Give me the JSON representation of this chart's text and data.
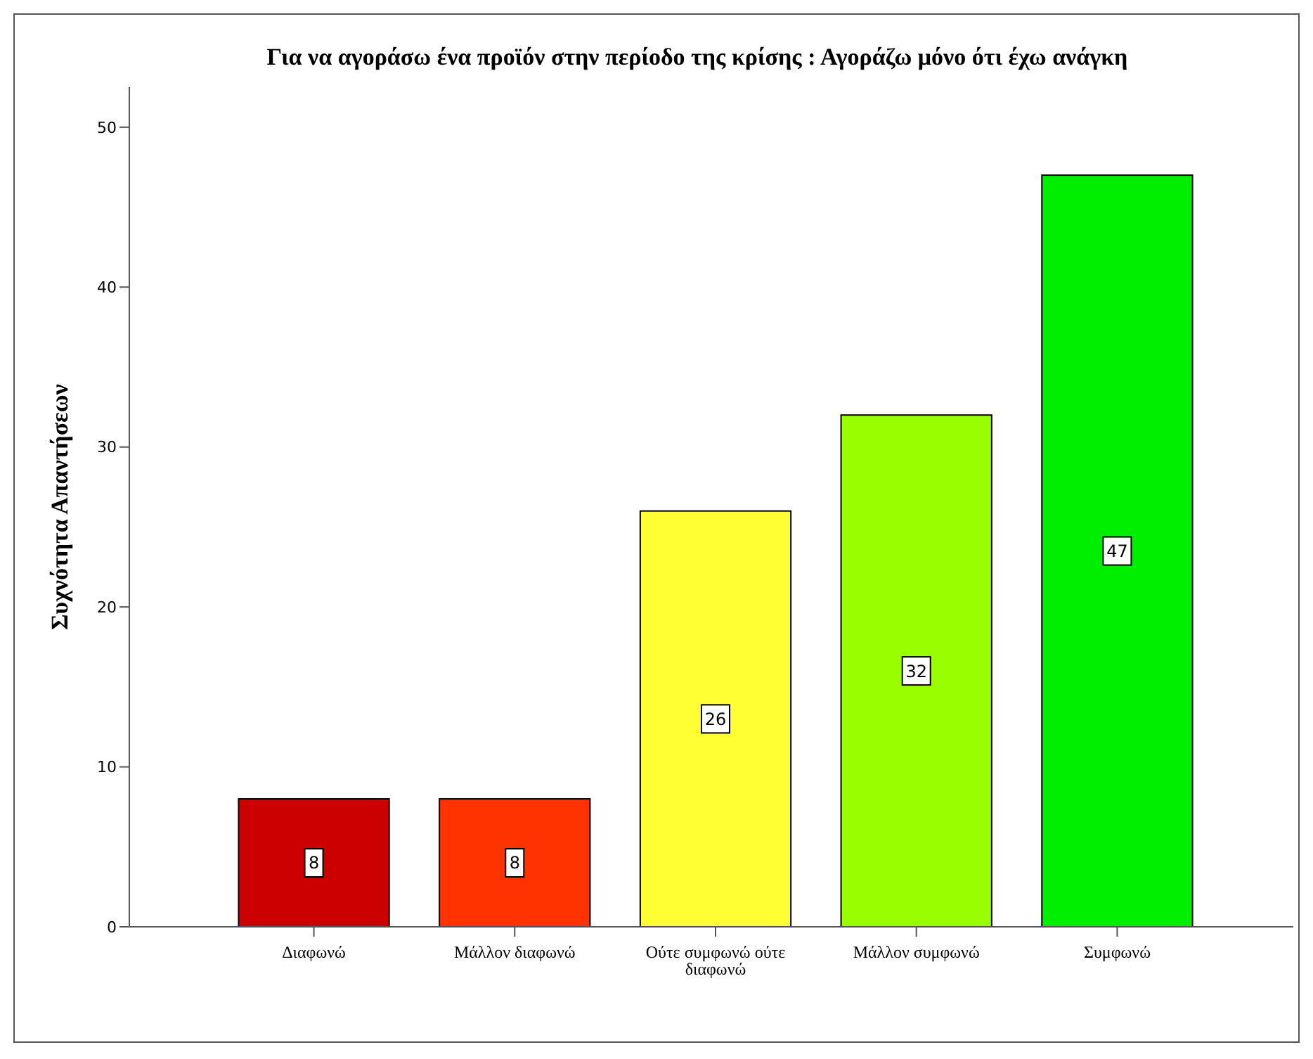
{
  "chart_data": {
    "type": "bar",
    "title": "Για να αγοράσω ένα προϊόν στην περίοδο της κρίσης : Αγοράζω μόνο ότι έχω ανάγκη",
    "ylabel": "Συχνότητα Απαντήσεων",
    "categories": [
      "Διαφωνώ",
      "Μάλλον διαφωνώ",
      "Ούτε συμφωνώ ούτε διαφωνώ",
      "Μάλλον συμφωνώ",
      "Συμφωνώ"
    ],
    "values": [
      8,
      8,
      26,
      32,
      47
    ],
    "colors": [
      "#cc0000",
      "#ff3300",
      "#ffff33",
      "#99ff00",
      "#00ee00"
    ],
    "ylim": [
      0,
      52.5
    ],
    "yticks": [
      0,
      10,
      20,
      30,
      40,
      50
    ],
    "data_labels": true,
    "grid": false
  }
}
